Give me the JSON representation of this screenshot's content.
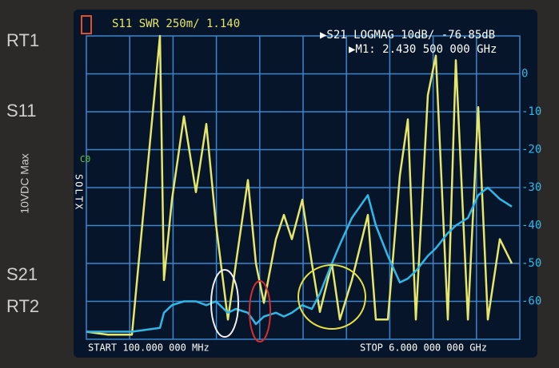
{
  "chart_data": {
    "type": "line",
    "title": "S11 SWR 250m/ 1.140",
    "subtitle": "▶S21 LOGMAG 10dB/ -76.85dB",
    "marker": "▶M1: 2.430 500 000 GHz",
    "start_label": "START  100.000 000 MHz",
    "stop_label": "STOP 6.000 000 000 GHz",
    "cal_label": "C0",
    "cal_flags": "SOLTX",
    "port_labels": [
      "RT1",
      "S11",
      "10VDC Max",
      "S21",
      "RT2"
    ],
    "x": [
      100,
      394,
      720,
      1101,
      1156,
      1265,
      1428,
      1591,
      1733,
      1864,
      2027,
      2136,
      2299,
      2408,
      2517,
      2680,
      2789,
      2898,
      3039,
      3170,
      3279,
      3442,
      3551,
      3714,
      3932,
      4041,
      4204,
      4367,
      4476,
      4585,
      4748,
      4857,
      5020,
      5129,
      5293,
      5434,
      5565,
      5728,
      5891
    ],
    "xlim": [
      100,
      6000
    ],
    "ylim": [
      1,
      3
    ],
    "y2lim": [
      -70,
      10
    ],
    "y2ticks": [
      0,
      -10,
      -20,
      -30,
      -40,
      -50,
      -60
    ],
    "grid": true,
    "series": [
      {
        "name": "S11",
        "color": "#e6e66a",
        "values": [
          1.05,
          1.03,
          1.03,
          3.0,
          1.39,
          1.92,
          2.47,
          1.97,
          2.42,
          1.76,
          1.13,
          1.5,
          2.05,
          1.5,
          1.24,
          1.66,
          1.82,
          1.66,
          1.92,
          1.5,
          1.18,
          1.5,
          1.13,
          1.39,
          1.82,
          1.13,
          1.13,
          2.08,
          2.45,
          1.13,
          2.61,
          2.87,
          1.13,
          2.84,
          1.13,
          2.53,
          1.13,
          1.66,
          1.5
        ]
      },
      {
        "name": "S21",
        "color": "#2fb8e8",
        "axis": "y2",
        "values": [
          -68,
          -68,
          -68,
          -67,
          -63,
          -61,
          -60,
          -60,
          -61,
          -60,
          -63,
          -62,
          -63,
          -66,
          -64,
          -63,
          -64,
          -63,
          -61,
          -62,
          -58,
          -50,
          -45,
          -38,
          -32,
          -40,
          -48,
          -55,
          -54,
          -52,
          -48,
          -46,
          -42,
          -40,
          -38,
          -32,
          -30,
          -33,
          -35
        ]
      }
    ]
  }
}
